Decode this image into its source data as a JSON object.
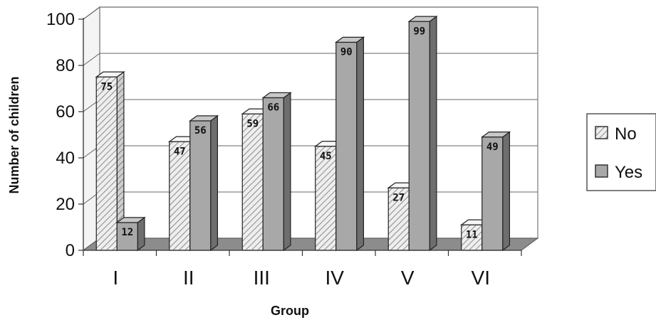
{
  "chart_data": {
    "type": "bar",
    "categories": [
      "I",
      "II",
      "III",
      "IV",
      "V",
      "VI"
    ],
    "series": [
      {
        "name": "No",
        "values": [
          75,
          47,
          59,
          45,
          27,
          11
        ]
      },
      {
        "name": "Yes",
        "values": [
          12,
          56,
          66,
          90,
          99,
          49
        ]
      }
    ],
    "title": "",
    "xlabel": "Group",
    "ylabel": "Number of children",
    "ylim": [
      0,
      100
    ],
    "yticks": [
      0,
      20,
      40,
      60,
      80,
      100
    ],
    "grid": true,
    "legend_position": "right",
    "colors": {
      "no_face": "#eeeeee",
      "no_hatch": "#8a8a8a",
      "yes_face": "#a8a8a8",
      "yes_side": "#6e6e6e",
      "yes_top": "#c8c8c8",
      "floor": "#8c8c8c",
      "wall": "#ffffff"
    }
  }
}
